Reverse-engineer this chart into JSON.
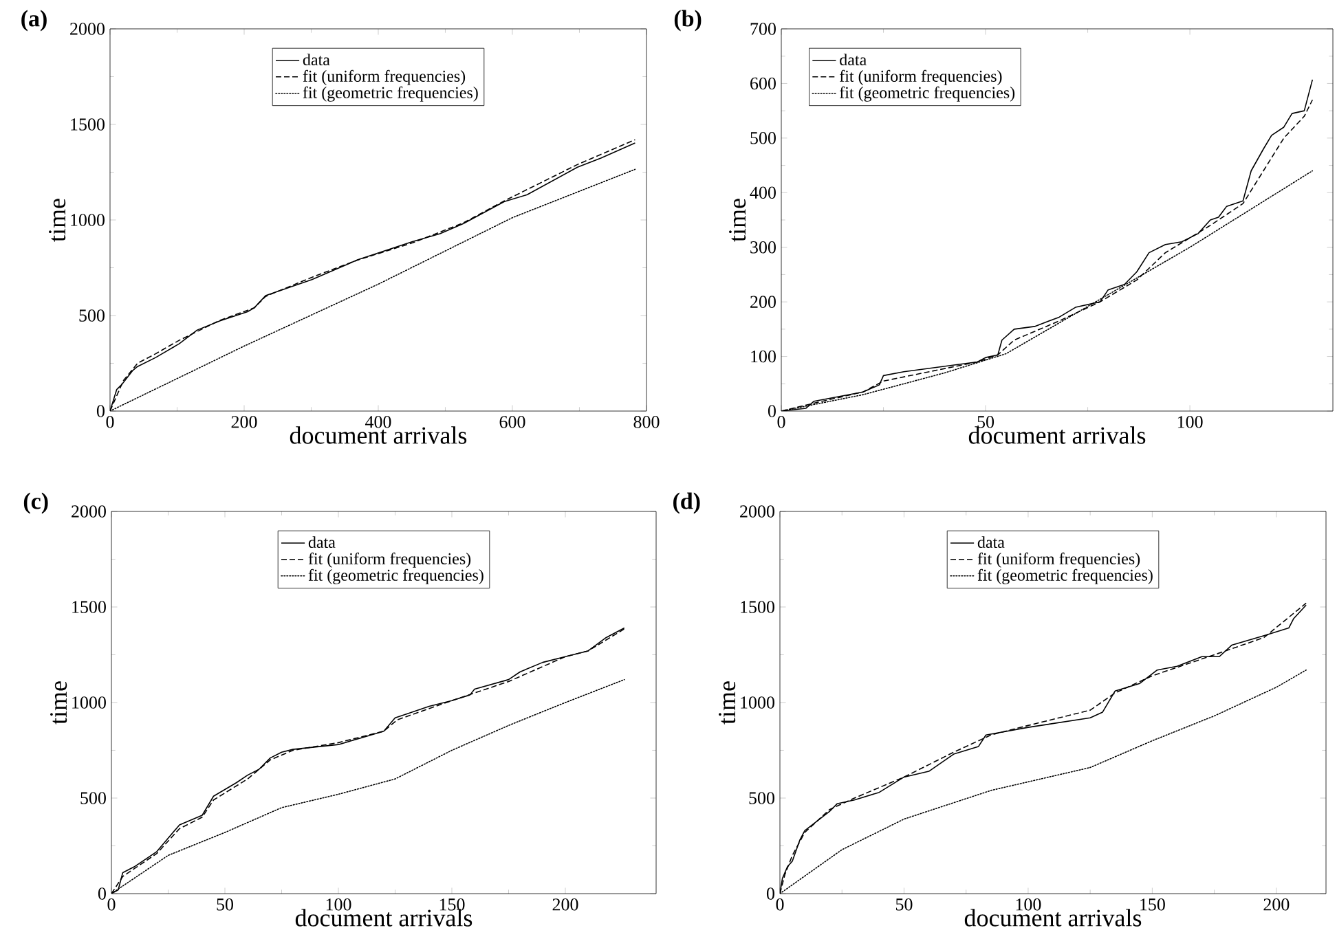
{
  "chart_data": [
    {
      "type": "line",
      "title": "(a)",
      "xlabel": "document arrivals",
      "ylabel": "time",
      "xlim": [
        0,
        800
      ],
      "ylim": [
        0,
        2000
      ],
      "xticks": [
        0,
        200,
        400,
        600,
        800
      ],
      "yticks": [
        0,
        500,
        1000,
        1500,
        2000
      ],
      "legend": "top",
      "grid": false,
      "marker": "none",
      "series": [
        {
          "name": "data",
          "color": "#000000",
          "line_style": "solid",
          "x": [
            0,
            10,
            17,
            34,
            41,
            68,
            103,
            130,
            164,
            205,
            215,
            232,
            301,
            369,
            451,
            492,
            527,
            588,
            622,
            697,
            732,
            783
          ],
          "values": [
            0,
            113,
            137,
            213,
            233,
            280,
            352,
            424,
            472,
            520,
            540,
            604,
            688,
            791,
            887,
            928,
            981,
            1096,
            1132,
            1276,
            1324,
            1403
          ]
        },
        {
          "name": "fit (uniform frequencies)",
          "color": "#000000",
          "line_style": "dashed",
          "x": [
            0,
            20,
            41,
            68,
            103,
            164,
            215,
            232,
            301,
            369,
            451,
            527,
            588,
            697,
            783
          ],
          "values": [
            0,
            160,
            250,
            300,
            370,
            475,
            540,
            600,
            700,
            790,
            880,
            985,
            1100,
            1290,
            1420
          ]
        },
        {
          "name": "fit (geometric frequencies)",
          "color": "#000000",
          "line_style": "dotted",
          "x": [
            0,
            200,
            400,
            600,
            783
          ],
          "values": [
            0,
            340,
            664,
            1012,
            1265
          ]
        }
      ]
    },
    {
      "type": "line",
      "title": "(b)",
      "xlabel": "document arrivals",
      "ylabel": "time",
      "xlim": [
        0,
        135
      ],
      "ylim": [
        0,
        700
      ],
      "xticks": [
        0,
        50,
        100
      ],
      "yticks": [
        0,
        100,
        200,
        300,
        400,
        500,
        600,
        700
      ],
      "legend": "top left",
      "grid": false,
      "marker": "none",
      "series": [
        {
          "name": "data",
          "color": "#000000",
          "line_style": "solid",
          "x": [
            0,
            6,
            8,
            20,
            24,
            25,
            30,
            48,
            50,
            53,
            54,
            57,
            62,
            68,
            72,
            78,
            80,
            84,
            87,
            90,
            94,
            98,
            102,
            105,
            107,
            109,
            113,
            115,
            118,
            120,
            123,
            125,
            128,
            130
          ],
          "values": [
            0,
            5,
            18,
            35,
            48,
            65,
            72,
            90,
            98,
            103,
            130,
            150,
            155,
            172,
            190,
            200,
            222,
            232,
            255,
            290,
            305,
            310,
            325,
            350,
            355,
            375,
            385,
            440,
            480,
            505,
            520,
            545,
            550,
            607
          ]
        },
        {
          "name": "fit (uniform frequencies)",
          "color": "#000000",
          "line_style": "dashed",
          "x": [
            0,
            10,
            20,
            25,
            48,
            53,
            57,
            68,
            78,
            87,
            94,
            105,
            113,
            118,
            123,
            128,
            130
          ],
          "values": [
            0,
            18,
            35,
            55,
            90,
            103,
            130,
            165,
            200,
            240,
            290,
            340,
            380,
            440,
            500,
            540,
            570
          ]
        },
        {
          "name": "fit (geometric frequencies)",
          "color": "#000000",
          "line_style": "dotted",
          "x": [
            0,
            20,
            40,
            55,
            70,
            85,
            100,
            115,
            130
          ],
          "values": [
            0,
            30,
            70,
            105,
            170,
            235,
            300,
            370,
            440
          ]
        }
      ]
    },
    {
      "type": "line",
      "title": "(c)",
      "xlabel": "document arrivals",
      "ylabel": "time",
      "xlim": [
        0,
        240
      ],
      "ylim": [
        0,
        2000
      ],
      "xticks": [
        0,
        50,
        100,
        150,
        200
      ],
      "yticks": [
        0,
        500,
        1000,
        1500,
        2000
      ],
      "legend": "top",
      "grid": false,
      "marker": "none",
      "series": [
        {
          "name": "data",
          "color": "#000000",
          "line_style": "solid",
          "x": [
            0,
            3,
            5,
            10,
            15,
            20,
            25,
            30,
            35,
            40,
            45,
            50,
            55,
            60,
            65,
            70,
            75,
            80,
            100,
            110,
            120,
            125,
            130,
            140,
            150,
            158,
            160,
            175,
            180,
            190,
            200,
            210,
            218,
            226
          ],
          "values": [
            0,
            20,
            110,
            140,
            180,
            220,
            290,
            360,
            385,
            410,
            510,
            545,
            580,
            620,
            650,
            710,
            740,
            755,
            780,
            815,
            850,
            920,
            940,
            980,
            1010,
            1040,
            1070,
            1120,
            1160,
            1210,
            1240,
            1270,
            1340,
            1390
          ]
        },
        {
          "name": "fit (uniform frequencies)",
          "color": "#000000",
          "line_style": "dashed",
          "x": [
            0,
            5,
            20,
            30,
            40,
            45,
            60,
            70,
            80,
            100,
            120,
            126,
            150,
            175,
            200,
            210,
            226
          ],
          "values": [
            0,
            90,
            210,
            340,
            400,
            490,
            600,
            700,
            750,
            790,
            850,
            910,
            1010,
            1110,
            1240,
            1270,
            1385
          ]
        },
        {
          "name": "fit (geometric frequencies)",
          "color": "#000000",
          "line_style": "dotted",
          "x": [
            0,
            25,
            50,
            75,
            100,
            125,
            150,
            175,
            200,
            226
          ],
          "values": [
            0,
            200,
            320,
            450,
            520,
            600,
            750,
            880,
            1000,
            1120
          ]
        }
      ]
    },
    {
      "type": "line",
      "title": "(d)",
      "xlabel": "document arrivals",
      "ylabel": "time",
      "xlim": [
        0,
        220
      ],
      "ylim": [
        0,
        2000
      ],
      "xticks": [
        0,
        50,
        100,
        150,
        200
      ],
      "yticks": [
        0,
        500,
        1000,
        1500,
        2000
      ],
      "legend": "top",
      "grid": false,
      "marker": "none",
      "series": [
        {
          "name": "data",
          "color": "#000000",
          "line_style": "solid",
          "x": [
            0,
            1,
            3,
            5,
            8,
            10,
            15,
            20,
            23,
            30,
            40,
            50,
            60,
            70,
            80,
            83,
            100,
            125,
            130,
            135,
            145,
            152,
            160,
            170,
            177,
            182,
            195,
            205,
            207,
            212
          ],
          "values": [
            0,
            80,
            140,
            170,
            280,
            330,
            380,
            430,
            470,
            490,
            530,
            610,
            640,
            730,
            770,
            830,
            870,
            920,
            950,
            1060,
            1100,
            1170,
            1190,
            1240,
            1240,
            1300,
            1350,
            1390,
            1440,
            1510
          ]
        },
        {
          "name": "fit (uniform frequencies)",
          "color": "#000000",
          "line_style": "dashed",
          "x": [
            0,
            2,
            5,
            10,
            20,
            30,
            50,
            70,
            85,
            100,
            125,
            135,
            150,
            175,
            195,
            212
          ],
          "values": [
            0,
            100,
            200,
            320,
            440,
            500,
            610,
            740,
            830,
            880,
            960,
            1050,
            1140,
            1250,
            1340,
            1520
          ]
        },
        {
          "name": "fit (geometric frequencies)",
          "color": "#000000",
          "line_style": "dotted",
          "x": [
            0,
            25,
            50,
            85,
            125,
            150,
            175,
            200,
            212
          ],
          "values": [
            0,
            230,
            390,
            540,
            660,
            800,
            930,
            1080,
            1170
          ]
        }
      ]
    }
  ]
}
